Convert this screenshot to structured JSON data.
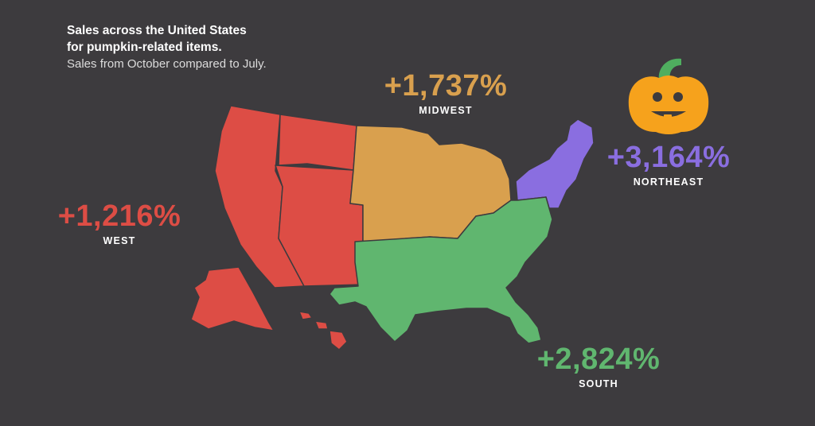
{
  "title_line1": "Sales across the United States",
  "title_line2": "for pumpkin-related items.",
  "subtitle": "Sales from October compared to July.",
  "colors": {
    "background": "#3d3b3e",
    "border": "#3d3b3e",
    "pumpkin": "#f6a21c",
    "stem": "#4fae5f"
  },
  "regions": [
    {
      "name": "WEST",
      "value": "+1,216%",
      "color": "#dd4d45"
    },
    {
      "name": "MIDWEST",
      "value": "+1,737%",
      "color": "#d9a04e"
    },
    {
      "name": "NORTHEAST",
      "value": "+3,164%",
      "color": "#8a6ee0"
    },
    {
      "name": "SOUTH",
      "value": "+2,824%",
      "color": "#60b66f"
    }
  ],
  "icons": [
    "pumpkin-icon"
  ]
}
